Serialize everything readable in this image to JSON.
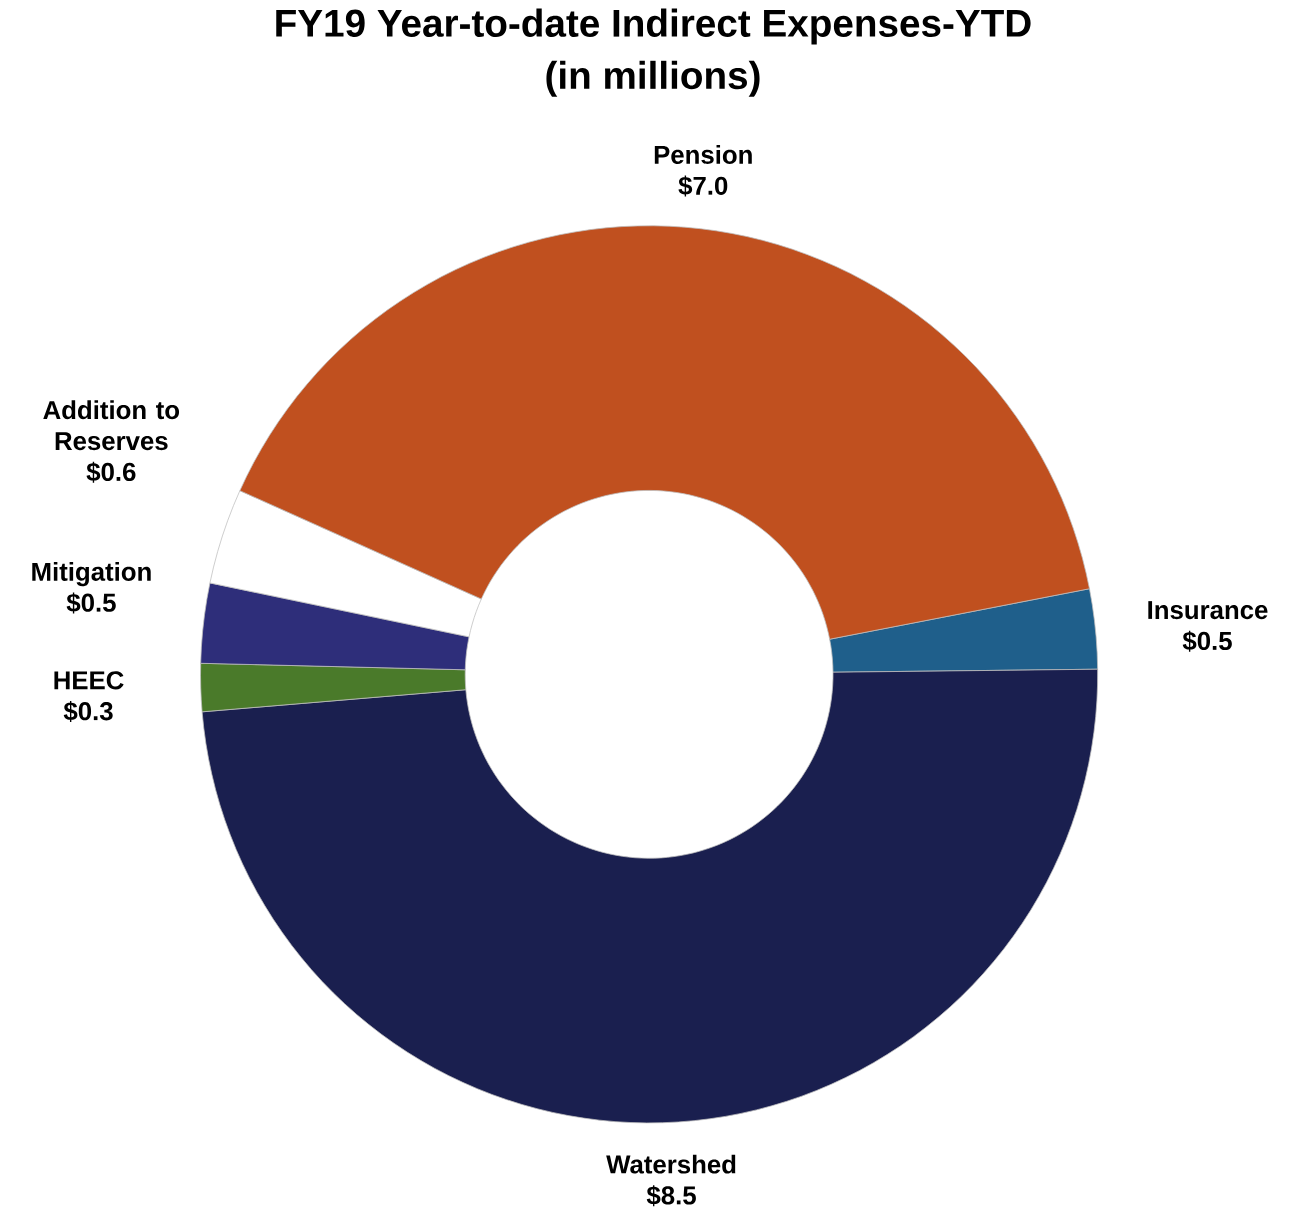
{
  "chart_data": {
    "type": "donut",
    "title": "FY19 Year-to-date Indirect Expenses-YTD",
    "subtitle": "(in millions)",
    "categories": [
      "Insurance",
      "Watershed",
      "HEEC",
      "Mitigation",
      "Addition to Reserves",
      "Pension"
    ],
    "values": [
      0.5,
      8.5,
      0.3,
      0.5,
      0.6,
      7.0
    ],
    "value_labels": [
      "$0.5",
      "$8.5",
      "$0.3",
      "$0.5",
      "$0.6",
      "$7.0"
    ],
    "colors": [
      "#1f5f8b",
      "#1a1f4f",
      "#4a7a2a",
      "#2e2e7a",
      "#ffffff",
      "#c0501f"
    ]
  }
}
